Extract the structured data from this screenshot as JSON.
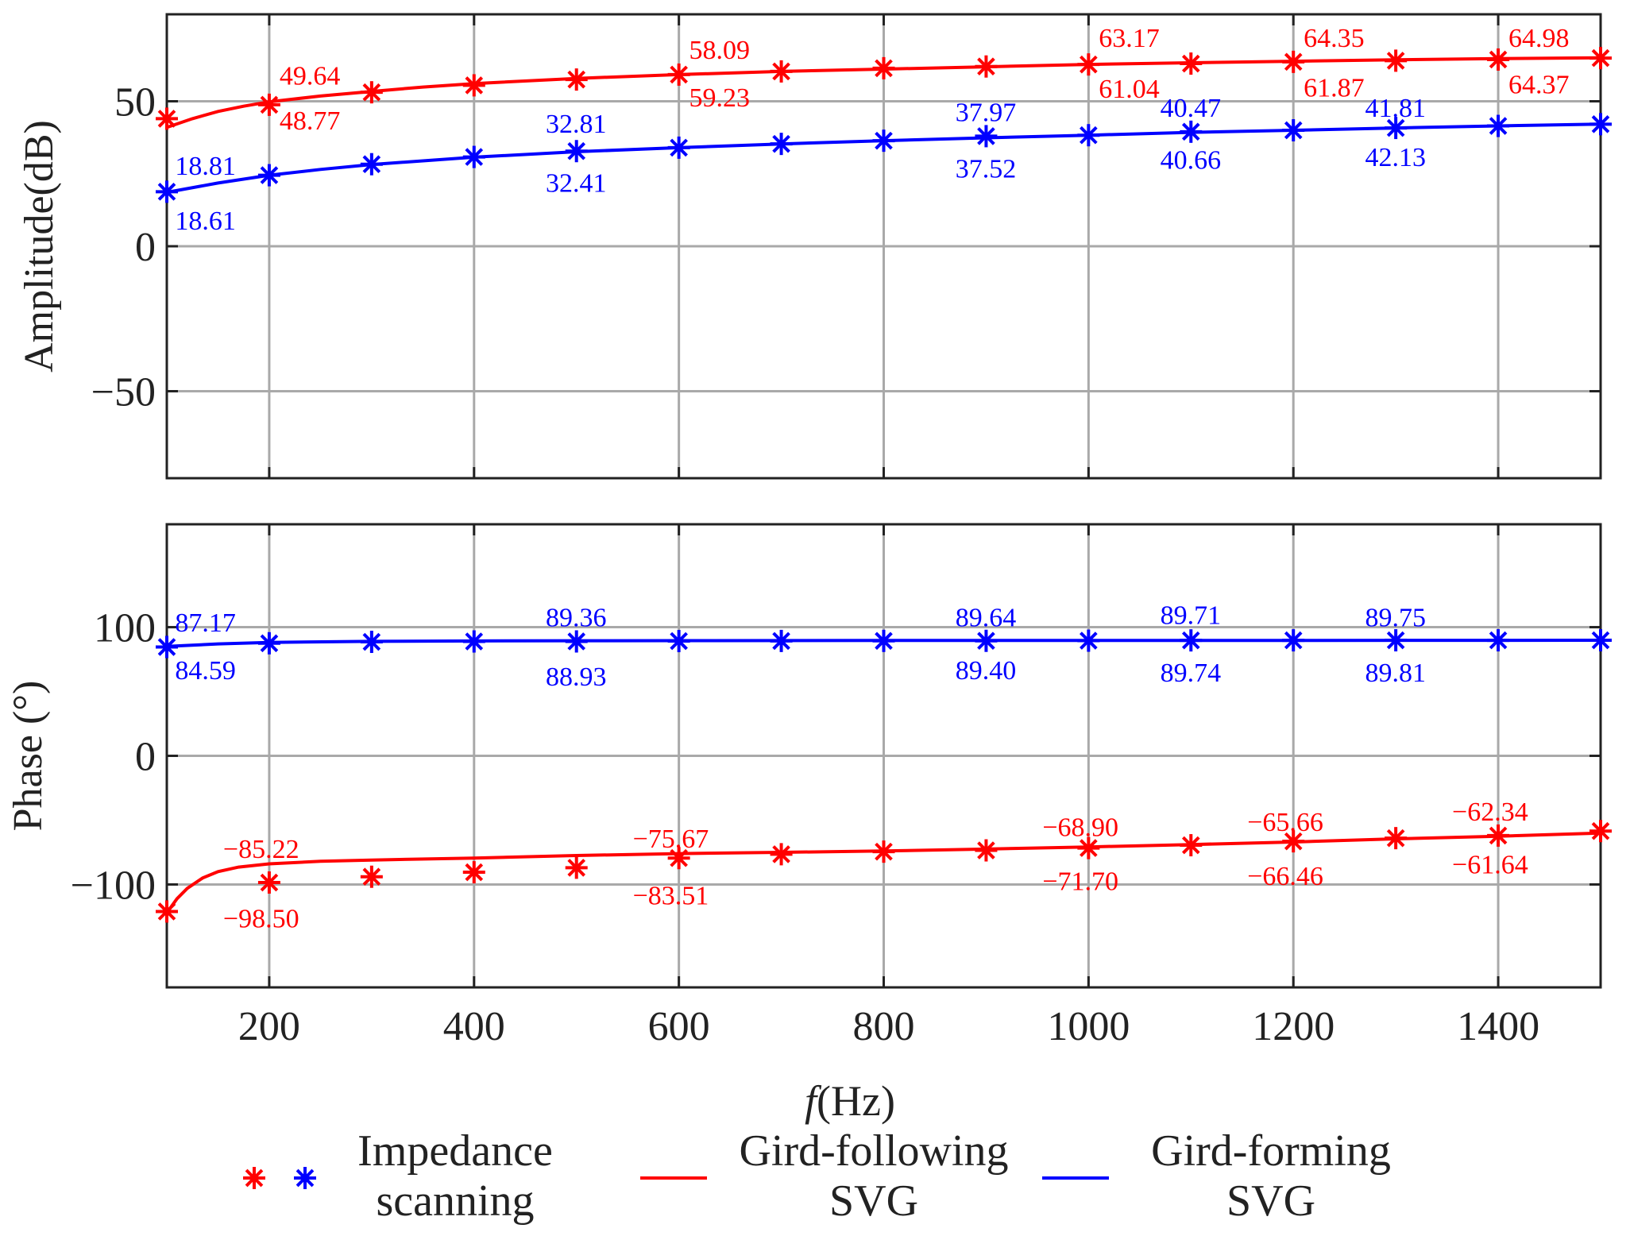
{
  "colors": {
    "red": "#ff0000",
    "blue": "#0000ff",
    "grid": "#a9a9a9",
    "axis": "#222222"
  },
  "chart_data": [
    {
      "type": "line",
      "panel": "amplitude",
      "ylabel": "Amplitude(dB)",
      "xlim": [
        100,
        1500
      ],
      "ylim": [
        -80,
        80
      ],
      "yticks": [
        50,
        0,
        -50
      ],
      "ytick_labels": [
        "50",
        "0",
        "−50"
      ],
      "xgrid": [
        200,
        400,
        600,
        800,
        1000,
        1200,
        1400
      ],
      "series": [
        {
          "name": "Gird-following SVG",
          "color": "#ff0000",
          "curve_x": [
            100,
            125,
            150,
            175,
            200,
            250,
            300,
            350,
            400,
            500,
            600,
            700,
            800,
            900,
            1000,
            1100,
            1200,
            1300,
            1400,
            1500
          ],
          "curve_y": [
            41,
            44,
            46.5,
            48.3,
            49.8,
            51.8,
            53.4,
            54.9,
            56.1,
            57.9,
            59.2,
            60.3,
            61.1,
            61.9,
            62.7,
            63.3,
            63.8,
            64.3,
            64.7,
            65.0
          ],
          "scan_x": [
            100,
            200,
            300,
            400,
            500,
            600,
            700,
            800,
            900,
            1000,
            1100,
            1200,
            1300,
            1400,
            1500
          ],
          "scan_y": [
            44.0,
            48.8,
            53.1,
            55.5,
            57.5,
            59.2,
            60.3,
            61.4,
            62.0,
            62.7,
            63.0,
            63.6,
            64.0,
            64.4,
            64.9
          ]
        },
        {
          "name": "Gird-forming SVG",
          "color": "#0000ff",
          "curve_x": [
            100,
            150,
            200,
            250,
            300,
            400,
            500,
            600,
            700,
            800,
            900,
            1000,
            1100,
            1200,
            1300,
            1400,
            1500
          ],
          "curve_y": [
            18.6,
            21.8,
            24.5,
            26.5,
            28.2,
            30.7,
            32.6,
            34.0,
            35.3,
            36.4,
            37.4,
            38.3,
            39.3,
            40.0,
            40.8,
            41.5,
            42.1
          ],
          "scan_x": [
            100,
            200,
            300,
            400,
            500,
            600,
            700,
            800,
            900,
            1000,
            1100,
            1200,
            1300,
            1400,
            1500
          ],
          "scan_y": [
            18.81,
            24.5,
            28.3,
            30.8,
            32.81,
            34.0,
            35.3,
            36.4,
            37.97,
            38.3,
            39.5,
            40.0,
            40.8,
            41.5,
            42.1
          ]
        }
      ],
      "annotations": [
        {
          "text": "49.64",
          "color": "#ff0000",
          "x": 210,
          "y": 59.0
        },
        {
          "text": "48.77",
          "color": "#ff0000",
          "x": 210,
          "y": 43.5
        },
        {
          "text": "58.09",
          "color": "#ff0000",
          "x": 610,
          "y": 68.0
        },
        {
          "text": "59.23",
          "color": "#ff0000",
          "x": 610,
          "y": 51.5
        },
        {
          "text": "63.17",
          "color": "#ff0000",
          "x": 1010,
          "y": 72.0
        },
        {
          "text": "61.04",
          "color": "#ff0000",
          "x": 1010,
          "y": 54.5
        },
        {
          "text": "64.35",
          "color": "#ff0000",
          "x": 1210,
          "y": 72.0
        },
        {
          "text": "61.87",
          "color": "#ff0000",
          "x": 1210,
          "y": 55.0
        },
        {
          "text": "64.98",
          "color": "#ff0000",
          "x": 1410,
          "y": 72.0
        },
        {
          "text": "64.37",
          "color": "#ff0000",
          "x": 1410,
          "y": 56.0
        },
        {
          "text": "18.81",
          "color": "#0000ff",
          "x": 108,
          "y": 28.0
        },
        {
          "text": "18.61",
          "color": "#0000ff",
          "x": 108,
          "y": 9.0
        },
        {
          "text": "32.81",
          "color": "#0000ff",
          "x": 470,
          "y": 42.5
        },
        {
          "text": "32.41",
          "color": "#0000ff",
          "x": 470,
          "y": 22.0
        },
        {
          "text": "37.97",
          "color": "#0000ff",
          "x": 870,
          "y": 46.5
        },
        {
          "text": "37.52",
          "color": "#0000ff",
          "x": 870,
          "y": 27.0
        },
        {
          "text": "40.47",
          "color": "#0000ff",
          "x": 1070,
          "y": 48.0
        },
        {
          "text": "40.66",
          "color": "#0000ff",
          "x": 1070,
          "y": 30.0
        },
        {
          "text": "41.81",
          "color": "#0000ff",
          "x": 1270,
          "y": 48.0
        },
        {
          "text": "42.13",
          "color": "#0000ff",
          "x": 1270,
          "y": 31.0
        }
      ]
    },
    {
      "type": "line",
      "panel": "phase",
      "ylabel": "Phase (°)",
      "xlabel_italic": "f",
      "xlabel_rest": "(Hz)",
      "xlim": [
        100,
        1500
      ],
      "ylim": [
        -180,
        180
      ],
      "yticks": [
        100,
        0,
        -100
      ],
      "ytick_labels": [
        "100",
        "0",
        "−100"
      ],
      "xticks": [
        200,
        400,
        600,
        800,
        1000,
        1200,
        1400
      ],
      "xtick_labels": [
        "200",
        "400",
        "600",
        "800",
        "1000",
        "1200",
        "1400"
      ],
      "series": [
        {
          "name": "Gird-forming SVG",
          "color": "#0000ff",
          "curve_x": [
            100,
            150,
            200,
            300,
            400,
            500,
            600,
            800,
            1000,
            1200,
            1400,
            1500
          ],
          "curve_y": [
            85.0,
            87.0,
            88.2,
            89.0,
            89.3,
            89.45,
            89.55,
            89.65,
            89.7,
            89.75,
            89.8,
            89.82
          ],
          "scan_x": [
            100,
            200,
            300,
            400,
            500,
            600,
            700,
            800,
            900,
            1000,
            1100,
            1200,
            1300,
            1400,
            1500
          ],
          "scan_y": [
            84.59,
            87.5,
            88.6,
            88.9,
            88.93,
            89.2,
            89.3,
            89.35,
            89.4,
            89.5,
            89.74,
            89.78,
            89.81,
            89.8,
            89.82
          ]
        },
        {
          "name": "Gird-following SVG",
          "color": "#ff0000",
          "curve_x": [
            100,
            110,
            120,
            135,
            150,
            170,
            200,
            250,
            300,
            400,
            500,
            600,
            700,
            800,
            900,
            1000,
            1100,
            1200,
            1300,
            1400,
            1500
          ],
          "curve_y": [
            -122,
            -111,
            -103,
            -95,
            -90,
            -86.5,
            -84,
            -82,
            -81,
            -79.5,
            -77.5,
            -76.0,
            -75.0,
            -74.0,
            -72.5,
            -70.8,
            -69.0,
            -67.0,
            -64.5,
            -62.5,
            -60.0
          ],
          "scan_x": [
            100,
            200,
            300,
            400,
            500,
            600,
            700,
            800,
            900,
            1000,
            1100,
            1200,
            1300,
            1400,
            1500
          ],
          "scan_y": [
            -121.0,
            -98.5,
            -94.0,
            -90.5,
            -87.0,
            -79.5,
            -76.5,
            -74.5,
            -73.5,
            -71.7,
            -69.5,
            -66.46,
            -64.0,
            -62.0,
            -58.5
          ]
        }
      ],
      "annotations": [
        {
          "text": "87.17",
          "color": "#0000ff",
          "x": 108,
          "y": 104.0
        },
        {
          "text": "84.59",
          "color": "#0000ff",
          "x": 108,
          "y": 67.0
        },
        {
          "text": "89.36",
          "color": "#0000ff",
          "x": 470,
          "y": 108.0
        },
        {
          "text": "88.93",
          "color": "#0000ff",
          "x": 470,
          "y": 62.0
        },
        {
          "text": "89.64",
          "color": "#0000ff",
          "x": 870,
          "y": 108.0
        },
        {
          "text": "89.40",
          "color": "#0000ff",
          "x": 870,
          "y": 67.0
        },
        {
          "text": "89.71",
          "color": "#0000ff",
          "x": 1070,
          "y": 110.0
        },
        {
          "text": "89.74",
          "color": "#0000ff",
          "x": 1070,
          "y": 65.0
        },
        {
          "text": "89.75",
          "color": "#0000ff",
          "x": 1270,
          "y": 108.0
        },
        {
          "text": "89.81",
          "color": "#0000ff",
          "x": 1270,
          "y": 65.0
        },
        {
          "text": "−85.22",
          "color": "#ff0000",
          "x": 155,
          "y": -72.0
        },
        {
          "text": "−98.50",
          "color": "#ff0000",
          "x": 155,
          "y": -126.0
        },
        {
          "text": "−75.67",
          "color": "#ff0000",
          "x": 555,
          "y": -64.0
        },
        {
          "text": "−83.51",
          "color": "#ff0000",
          "x": 555,
          "y": -108.0
        },
        {
          "text": "−68.90",
          "color": "#ff0000",
          "x": 955,
          "y": -55.0
        },
        {
          "text": "−71.70",
          "color": "#ff0000",
          "x": 955,
          "y": -97.0
        },
        {
          "text": "−65.66",
          "color": "#ff0000",
          "x": 1155,
          "y": -51.0
        },
        {
          "text": "−66.46",
          "color": "#ff0000",
          "x": 1155,
          "y": -93.0
        },
        {
          "text": "−62.34",
          "color": "#ff0000",
          "x": 1355,
          "y": -43.0
        },
        {
          "text": "−61.64",
          "color": "#ff0000",
          "x": 1355,
          "y": -84.0
        }
      ]
    }
  ],
  "legend": {
    "scan_line1": "Impedance",
    "scan_line2": "scanning",
    "following_line1": "Gird-following",
    "following_line2": "SVG",
    "forming_line1": "Gird-forming",
    "forming_line2": "SVG"
  }
}
